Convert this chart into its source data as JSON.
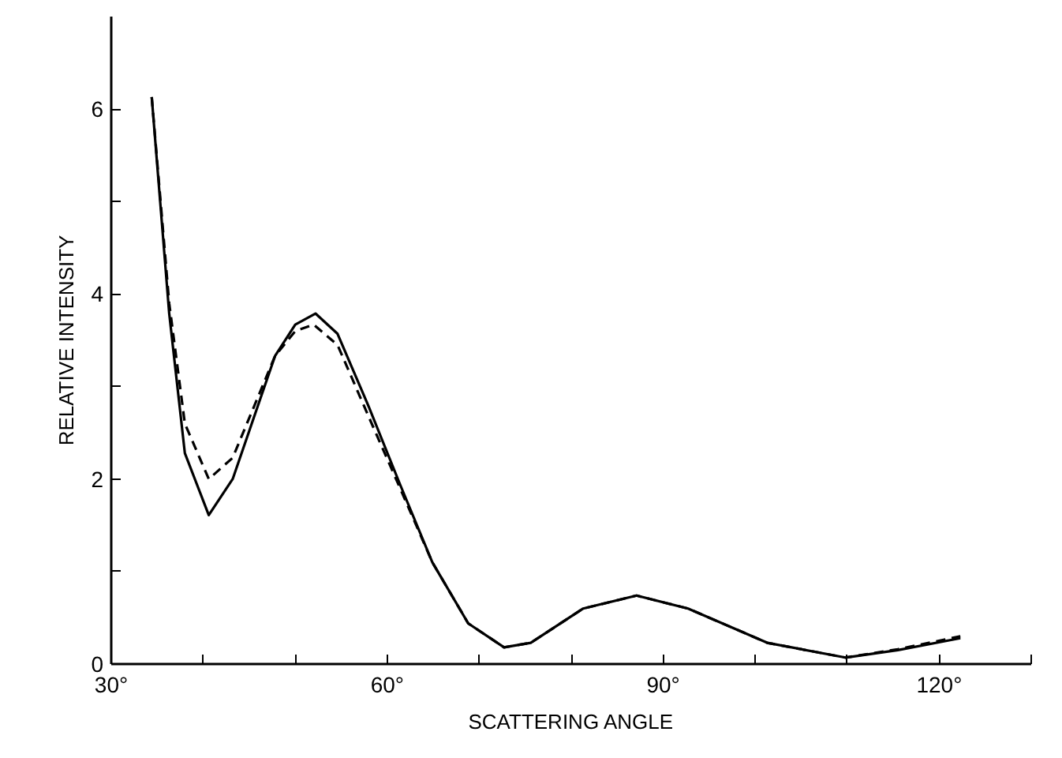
{
  "chart_data": {
    "type": "line",
    "xlabel": "SCATTERING ANGLE",
    "ylabel": "RELATIVE INTENSITY",
    "xlim": [
      30,
      130
    ],
    "ylim": [
      0,
      7
    ],
    "xticks": [
      {
        "value": 30,
        "label": "30°"
      },
      {
        "value": 40,
        "label": null
      },
      {
        "value": 50,
        "label": null
      },
      {
        "value": 60,
        "label": "60°"
      },
      {
        "value": 70,
        "label": null
      },
      {
        "value": 80,
        "label": null
      },
      {
        "value": 90,
        "label": "90°"
      },
      {
        "value": 100,
        "label": null
      },
      {
        "value": 110,
        "label": null
      },
      {
        "value": 120,
        "label": "120°"
      },
      {
        "value": 130,
        "label": null
      }
    ],
    "yticks": [
      0,
      {
        "value": 1,
        "label": null
      },
      2,
      {
        "value": 3,
        "label": null
      },
      4,
      {
        "value": 5,
        "label": null
      },
      6
    ],
    "grid": false,
    "marker": "none",
    "series": [
      {
        "color": "#000000",
        "line_style": "solid",
        "x": [
          34.4,
          36.3,
          38.0,
          40.6,
          43.2,
          47.8,
          50,
          52.2,
          54.6,
          58,
          61.4,
          64.9,
          68.8,
          72.7,
          75.6,
          81.3,
          87.1,
          92.7,
          101.3,
          109.8,
          115.5,
          122.3
        ],
        "values": [
          6.13,
          3.79,
          2.28,
          1.61,
          2.0,
          3.33,
          3.67,
          3.79,
          3.57,
          2.78,
          1.94,
          1.1,
          0.44,
          0.18,
          0.23,
          0.6,
          0.74,
          0.6,
          0.23,
          0.07,
          0.15,
          0.28
        ]
      },
      {
        "color": "#000000",
        "line_style": "dashed",
        "x": [
          34.4,
          36.3,
          38.0,
          40.6,
          43.2,
          47.8,
          50,
          52,
          54.6,
          58,
          61.4,
          64.9,
          68.8,
          72.7,
          75.6,
          81.3,
          87.1,
          92.7,
          101.3,
          109.8,
          115.5,
          122.3
        ],
        "values": [
          6.13,
          3.9,
          2.6,
          2.0,
          2.23,
          3.33,
          3.6,
          3.67,
          3.45,
          2.67,
          1.9,
          1.1,
          0.44,
          0.18,
          0.23,
          0.6,
          0.74,
          0.6,
          0.23,
          0.07,
          0.16,
          0.3
        ]
      }
    ]
  }
}
